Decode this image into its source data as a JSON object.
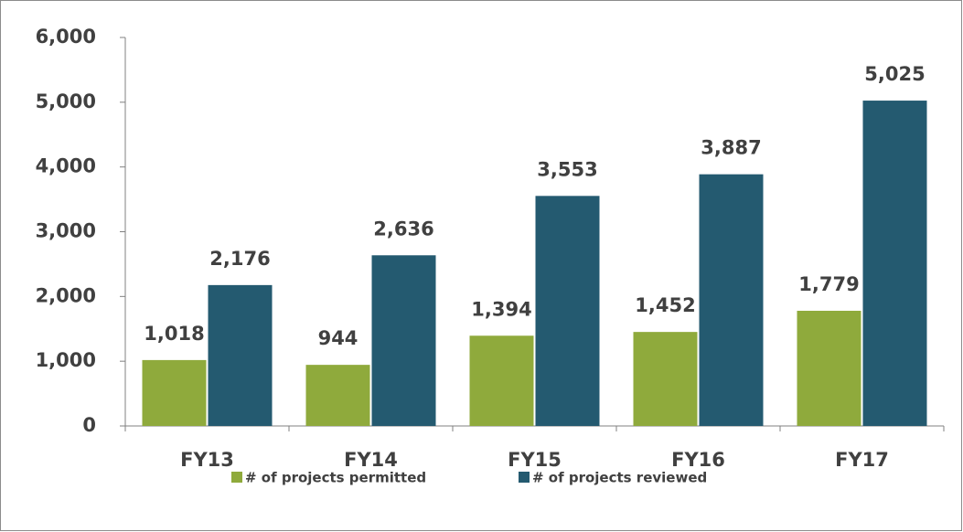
{
  "chart_data": {
    "type": "bar",
    "categories": [
      "FY13",
      "FY14",
      "FY15",
      "FY16",
      "FY17"
    ],
    "series": [
      {
        "name": "# of projects permitted",
        "color": "#8faa3c",
        "values": [
          1018,
          944,
          1394,
          1452,
          1779
        ],
        "value_labels": [
          "1,018",
          "944",
          "1,394",
          "1,452",
          "1,779"
        ]
      },
      {
        "name": "# of projects reviewed",
        "color": "#245a70",
        "values": [
          2176,
          2636,
          3553,
          3887,
          5025
        ],
        "value_labels": [
          "2,176",
          "2,636",
          "3,553",
          "3,887",
          "5,025"
        ]
      }
    ],
    "ylim": [
      0,
      6000
    ],
    "yticks": [
      0,
      {
        "value": 1000,
        "label": "1,000"
      },
      {
        "value": 2000,
        "label": "2,000"
      },
      {
        "value": 3000,
        "label": "3,000"
      },
      {
        "value": 4000,
        "label": "4,000"
      },
      {
        "value": 5000,
        "label": "5,000"
      },
      {
        "value": 6000,
        "label": "6,000"
      }
    ],
    "legend": "bottom"
  }
}
